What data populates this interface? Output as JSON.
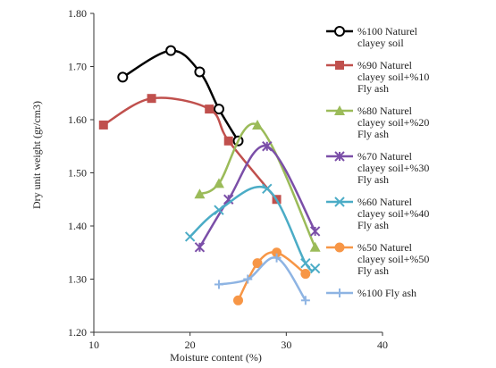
{
  "chart_data": {
    "type": "scatter",
    "title": "",
    "xlabel": "Moisture content (%)",
    "ylabel": "Dry unit weight (gr/cm3)",
    "xlim": [
      10,
      40
    ],
    "ylim": [
      1.2,
      1.8
    ],
    "x_ticks": [
      "10",
      "20",
      "30",
      "40"
    ],
    "y_ticks": [
      "1.20",
      "1.30",
      "1.40",
      "1.50",
      "1.60",
      "1.70",
      "1.80"
    ],
    "grid": false,
    "legend_position": "right",
    "series": [
      {
        "name_lines": [
          "%100 Naturel",
          "clayey soil"
        ],
        "color": "#000000",
        "marker": "circle-open",
        "x": [
          13,
          18,
          21,
          23,
          25
        ],
        "y": [
          1.68,
          1.73,
          1.69,
          1.62,
          1.56
        ]
      },
      {
        "name_lines": [
          "%90 Naturel",
          "clayey soil+%10",
          "Fly ash"
        ],
        "color": "#c0504d",
        "marker": "square",
        "x": [
          11,
          16,
          22,
          24,
          29
        ],
        "y": [
          1.59,
          1.64,
          1.62,
          1.56,
          1.45
        ]
      },
      {
        "name_lines": [
          "%80 Naturel",
          "clayey soil+%20",
          "Fly ash"
        ],
        "color": "#9bbb59",
        "marker": "triangle",
        "x": [
          21,
          23,
          27,
          33
        ],
        "y": [
          1.46,
          1.48,
          1.59,
          1.36
        ]
      },
      {
        "name_lines": [
          "%70 Naturel",
          "clayey soil+%30",
          "Fly ash"
        ],
        "color": "#7b4fa8",
        "marker": "x-star",
        "x": [
          21,
          24,
          28,
          33
        ],
        "y": [
          1.36,
          1.45,
          1.55,
          1.39
        ]
      },
      {
        "name_lines": [
          "%60 Naturel",
          "clayey soil+%40",
          "Fly ash"
        ],
        "color": "#4bacc6",
        "marker": "x",
        "x": [
          20,
          23,
          28,
          32,
          33
        ],
        "y": [
          1.38,
          1.43,
          1.47,
          1.33,
          1.32
        ]
      },
      {
        "name_lines": [
          "%50 Naturel",
          "clayey soil+%50",
          "Fly ash"
        ],
        "color": "#f79646",
        "marker": "circle",
        "x": [
          25,
          27,
          29,
          32
        ],
        "y": [
          1.26,
          1.33,
          1.35,
          1.31
        ]
      },
      {
        "name_lines": [
          "%100 Fly ash"
        ],
        "color": "#8eb4e3",
        "marker": "plus",
        "x": [
          23,
          26,
          29,
          32
        ],
        "y": [
          1.29,
          1.3,
          1.34,
          1.26
        ]
      }
    ]
  }
}
